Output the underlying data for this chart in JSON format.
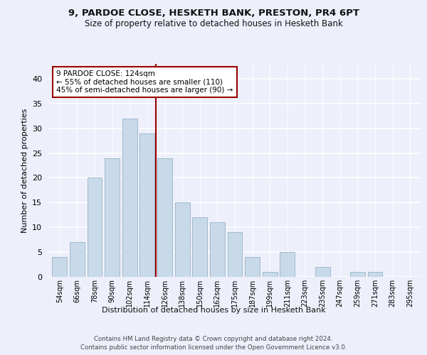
{
  "title_line1": "9, PARDOE CLOSE, HESKETH BANK, PRESTON, PR4 6PT",
  "title_line2": "Size of property relative to detached houses in Hesketh Bank",
  "xlabel": "Distribution of detached houses by size in Hesketh Bank",
  "ylabel": "Number of detached properties",
  "categories": [
    "54sqm",
    "66sqm",
    "78sqm",
    "90sqm",
    "102sqm",
    "114sqm",
    "126sqm",
    "138sqm",
    "150sqm",
    "162sqm",
    "175sqm",
    "187sqm",
    "199sqm",
    "211sqm",
    "223sqm",
    "235sqm",
    "247sqm",
    "259sqm",
    "271sqm",
    "283sqm",
    "295sqm"
  ],
  "values": [
    4,
    7,
    20,
    24,
    32,
    29,
    24,
    15,
    12,
    11,
    9,
    4,
    1,
    5,
    0,
    2,
    0,
    1,
    1,
    0,
    0
  ],
  "bar_color": "#c8daea",
  "bar_edgecolor": "#a0b8cc",
  "vline_x": 5.5,
  "vline_color": "#990000",
  "annotation_text": "9 PARDOE CLOSE: 124sqm\n← 55% of detached houses are smaller (110)\n45% of semi-detached houses are larger (90) →",
  "annotation_box_color": "#ffffff",
  "annotation_box_edgecolor": "#990000",
  "ylim": [
    0,
    43
  ],
  "yticks": [
    0,
    5,
    10,
    15,
    20,
    25,
    30,
    35,
    40
  ],
  "background_color": "#edf0fa",
  "footer_line1": "Contains HM Land Registry data © Crown copyright and database right 2024.",
  "footer_line2": "Contains public sector information licensed under the Open Government Licence v3.0.",
  "title_fontsize": 9.5,
  "subtitle_fontsize": 8.5,
  "bar_width": 0.85
}
